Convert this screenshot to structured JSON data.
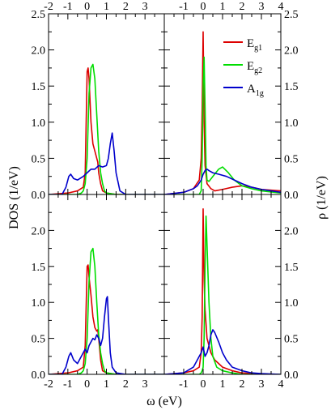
{
  "figure": {
    "ylabel_left": "DOS (1/eV)",
    "ylabel_right": "ρ (1/eV)",
    "xlabel": "ω (eV)"
  },
  "legend": [
    {
      "main": "E",
      "sub": "g1",
      "color": "#dd0000"
    },
    {
      "main": "E",
      "sub": "g2",
      "color": "#00dd00"
    },
    {
      "main": "A",
      "sub": "1g",
      "color": "#0000cc"
    }
  ],
  "chart_data": [
    {
      "type": "line",
      "panel": "top-left",
      "xlim": [
        -2,
        4
      ],
      "ylim": [
        0,
        2.5
      ],
      "x_ticks": [
        "-2",
        "-1",
        "0",
        "1",
        "2",
        "3"
      ],
      "y_ticks": [
        "0.0",
        "0.5",
        "1.0",
        "1.5",
        "2.0",
        "2.5"
      ],
      "series": [
        {
          "name": "Eg1",
          "color": "#dd0000",
          "x": [
            -2,
            -1.0,
            -0.5,
            -0.2,
            -0.1,
            0.0,
            0.05,
            0.1,
            0.2,
            0.3,
            0.4,
            0.5,
            0.55,
            0.6,
            0.7,
            0.8,
            1.0,
            1.5,
            2,
            4
          ],
          "y": [
            0,
            0.02,
            0.05,
            0.1,
            0.3,
            1.7,
            1.75,
            1.6,
            1.0,
            0.7,
            0.6,
            0.5,
            0.45,
            0.3,
            0.15,
            0.05,
            0.02,
            0.0,
            0,
            0
          ]
        },
        {
          "name": "Eg2",
          "color": "#00dd00",
          "x": [
            -2,
            -0.5,
            -0.3,
            -0.2,
            -0.1,
            0.0,
            0.1,
            0.2,
            0.3,
            0.4,
            0.5,
            0.6,
            0.7,
            0.8,
            0.9,
            1.0,
            1.5,
            4
          ],
          "y": [
            0,
            0.0,
            0.02,
            0.05,
            0.15,
            0.5,
            1.4,
            1.75,
            1.8,
            1.6,
            1.1,
            0.6,
            0.3,
            0.15,
            0.05,
            0.02,
            0.0,
            0
          ]
        },
        {
          "name": "A1g",
          "color": "#0000cc",
          "x": [
            -2,
            -1.3,
            -1.1,
            -0.95,
            -0.85,
            -0.7,
            -0.5,
            -0.2,
            0.0,
            0.2,
            0.4,
            0.6,
            0.8,
            1.0,
            1.1,
            1.2,
            1.3,
            1.4,
            1.5,
            1.7,
            2.0,
            4
          ],
          "y": [
            0,
            0.0,
            0.1,
            0.25,
            0.28,
            0.22,
            0.2,
            0.25,
            0.3,
            0.35,
            0.35,
            0.4,
            0.38,
            0.4,
            0.5,
            0.7,
            0.85,
            0.6,
            0.3,
            0.05,
            0.0,
            0
          ]
        }
      ]
    },
    {
      "type": "line",
      "panel": "top-right",
      "xlim": [
        -2,
        4
      ],
      "ylim": [
        0,
        2.5
      ],
      "x_ticks": [
        "-1",
        "0",
        "1",
        "2",
        "3",
        "4"
      ],
      "y_ticks": [
        "0.0",
        "0.5",
        "1.0",
        "1.5",
        "2.0",
        "2.5"
      ],
      "series": [
        {
          "name": "Eg1",
          "color": "#dd0000",
          "x": [
            -2,
            -1.0,
            -0.5,
            -0.2,
            -0.1,
            -0.05,
            0.0,
            0.05,
            0.1,
            0.2,
            0.4,
            0.6,
            1.0,
            1.5,
            2.0,
            2.5,
            3.0,
            4.0
          ],
          "y": [
            0.0,
            0.03,
            0.08,
            0.2,
            0.5,
            1.2,
            2.25,
            1.0,
            0.4,
            0.15,
            0.08,
            0.05,
            0.07,
            0.1,
            0.12,
            0.1,
            0.07,
            0.05
          ]
        },
        {
          "name": "Eg2",
          "color": "#00dd00",
          "x": [
            -2,
            -0.2,
            -0.1,
            -0.05,
            0.0,
            0.05,
            0.1,
            0.15,
            0.2,
            0.3,
            0.5,
            0.8,
            1.0,
            1.3,
            1.6,
            2.0,
            2.5,
            3.0,
            4.0
          ],
          "y": [
            0,
            0.0,
            0.05,
            0.5,
            1.5,
            1.9,
            1.2,
            0.4,
            0.2,
            0.18,
            0.25,
            0.35,
            0.38,
            0.3,
            0.2,
            0.12,
            0.08,
            0.05,
            0.02
          ]
        },
        {
          "name": "A1g",
          "color": "#0000cc",
          "x": [
            -2,
            -1.0,
            -0.5,
            -0.3,
            -0.1,
            0.0,
            0.1,
            0.2,
            0.3,
            0.5,
            0.8,
            1.2,
            1.6,
            2.0,
            2.5,
            3.0,
            4.0
          ],
          "y": [
            0.0,
            0.03,
            0.08,
            0.12,
            0.2,
            0.28,
            0.33,
            0.35,
            0.33,
            0.3,
            0.28,
            0.25,
            0.2,
            0.15,
            0.1,
            0.07,
            0.03
          ]
        }
      ]
    },
    {
      "type": "line",
      "panel": "bottom-left",
      "xlim": [
        -2,
        4
      ],
      "ylim": [
        0,
        2.5
      ],
      "x_ticks": [
        "-2",
        "-1",
        "0",
        "1",
        "2",
        "3"
      ],
      "y_ticks": [
        "0.0",
        "0.5",
        "1.0",
        "1.5",
        "2.0"
      ],
      "series": [
        {
          "name": "Eg1",
          "color": "#dd0000",
          "x": [
            -2,
            -1.0,
            -0.5,
            -0.2,
            -0.1,
            0.0,
            0.05,
            0.1,
            0.2,
            0.3,
            0.4,
            0.5,
            0.55,
            0.6,
            0.7,
            0.8,
            1.0,
            1.5,
            4
          ],
          "y": [
            0,
            0.02,
            0.05,
            0.1,
            0.4,
            1.5,
            1.52,
            1.35,
            1.1,
            0.8,
            0.65,
            0.6,
            0.62,
            0.5,
            0.2,
            0.05,
            0.02,
            0.0,
            0
          ]
        },
        {
          "name": "Eg2",
          "color": "#00dd00",
          "x": [
            -2,
            -0.5,
            -0.3,
            -0.2,
            -0.1,
            0.0,
            0.1,
            0.2,
            0.3,
            0.4,
            0.5,
            0.6,
            0.7,
            0.8,
            0.9,
            1.0,
            1.5,
            4
          ],
          "y": [
            0,
            0.0,
            0.02,
            0.05,
            0.15,
            0.5,
            1.3,
            1.7,
            1.75,
            1.5,
            1.0,
            0.55,
            0.3,
            0.15,
            0.05,
            0.02,
            0.0,
            0
          ]
        },
        {
          "name": "A1g",
          "color": "#0000cc",
          "x": [
            -2,
            -1.3,
            -1.1,
            -0.95,
            -0.85,
            -0.7,
            -0.5,
            -0.3,
            -0.1,
            0.0,
            0.1,
            0.2,
            0.3,
            0.4,
            0.5,
            0.6,
            0.7,
            0.8,
            0.9,
            1.0,
            1.05,
            1.1,
            1.2,
            1.3,
            1.5,
            2.0,
            4
          ],
          "y": [
            0,
            0.0,
            0.1,
            0.25,
            0.3,
            0.2,
            0.15,
            0.25,
            0.35,
            0.3,
            0.4,
            0.45,
            0.5,
            0.48,
            0.55,
            0.5,
            0.4,
            0.5,
            0.8,
            1.05,
            1.08,
            0.8,
            0.3,
            0.1,
            0.02,
            0.0,
            0
          ]
        }
      ]
    },
    {
      "type": "line",
      "panel": "bottom-right",
      "xlim": [
        -2,
        4
      ],
      "ylim": [
        0,
        2.5
      ],
      "x_ticks": [
        "-1",
        "0",
        "1",
        "2",
        "3",
        "4"
      ],
      "y_ticks": [
        "0.0",
        "0.5",
        "1.0",
        "1.5",
        "2.0"
      ],
      "series": [
        {
          "name": "Eg1",
          "color": "#dd0000",
          "x": [
            -2,
            -1.0,
            -0.5,
            -0.2,
            -0.1,
            -0.05,
            0.0,
            0.05,
            0.1,
            0.2,
            0.4,
            0.6,
            1.0,
            1.5,
            2.0,
            2.5,
            3.0,
            4.0
          ],
          "y": [
            0.0,
            0.02,
            0.05,
            0.1,
            0.3,
            0.8,
            2.3,
            1.3,
            0.9,
            0.5,
            0.3,
            0.2,
            0.1,
            0.05,
            0.02,
            0.01,
            0.0,
            0.0
          ]
        },
        {
          "name": "Eg2",
          "color": "#00dd00",
          "x": [
            -2,
            -0.2,
            -0.1,
            -0.05,
            0.0,
            0.05,
            0.1,
            0.15,
            0.2,
            0.3,
            0.4,
            0.5,
            0.7,
            1.0,
            1.5,
            2.0,
            4.0
          ],
          "y": [
            0,
            0.0,
            0.02,
            0.05,
            0.1,
            0.5,
            1.5,
            2.2,
            1.8,
            1.0,
            0.5,
            0.25,
            0.1,
            0.05,
            0.02,
            0.0,
            0.0
          ]
        },
        {
          "name": "A1g",
          "color": "#0000cc",
          "x": [
            -2,
            -1.0,
            -0.5,
            -0.3,
            -0.2,
            -0.1,
            0.0,
            0.1,
            0.2,
            0.3,
            0.4,
            0.5,
            0.6,
            0.8,
            1.0,
            1.2,
            1.5,
            2.0,
            2.5,
            3.0,
            4.0
          ],
          "y": [
            0.0,
            0.02,
            0.1,
            0.2,
            0.25,
            0.3,
            0.38,
            0.25,
            0.3,
            0.4,
            0.55,
            0.62,
            0.58,
            0.45,
            0.3,
            0.2,
            0.1,
            0.05,
            0.02,
            0.01,
            0.0
          ]
        }
      ]
    }
  ]
}
